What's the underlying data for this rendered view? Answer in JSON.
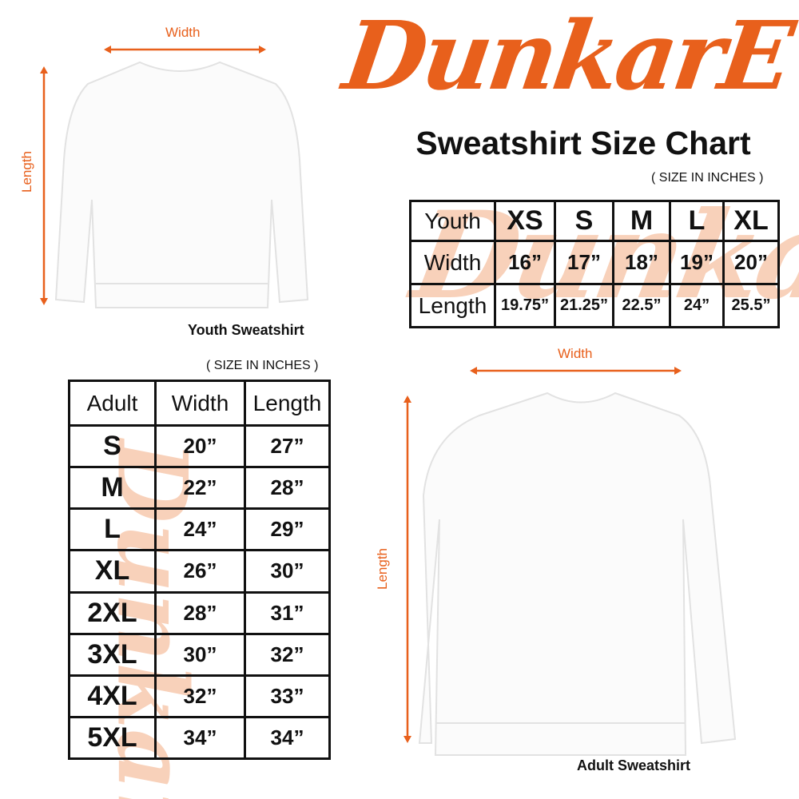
{
  "brand": {
    "logo_text": "DunkarE",
    "accent": "#e8601c"
  },
  "title": "Sweatshirt Size Chart",
  "youth": {
    "caption": "Youth Sweatshirt",
    "note": "( SIZE IN INCHES )",
    "width_label": "Width",
    "length_label": "Length",
    "header": [
      "Youth",
      "XS",
      "S",
      "M",
      "L",
      "XL"
    ],
    "rows": [
      [
        "Width",
        "16”",
        "17”",
        "18”",
        "19”",
        "20”"
      ],
      [
        "Length",
        "19.75”",
        "21.25”",
        "22.5”",
        "24”",
        "25.5”"
      ]
    ]
  },
  "adult": {
    "caption": "Adult Sweatshirt",
    "note": "( SIZE IN INCHES )",
    "width_label": "Width",
    "length_label": "Length",
    "header": [
      "Adult",
      "Width",
      "Length"
    ],
    "rows": [
      [
        "S",
        "20”",
        "27”"
      ],
      [
        "M",
        "22”",
        "28”"
      ],
      [
        "L",
        "24”",
        "29”"
      ],
      [
        "XL",
        "26”",
        "30”"
      ],
      [
        "2XL",
        "28”",
        "31”"
      ],
      [
        "3XL",
        "30”",
        "32”"
      ],
      [
        "4XL",
        "32”",
        "33”"
      ],
      [
        "5XL",
        "34”",
        "34”"
      ]
    ]
  }
}
